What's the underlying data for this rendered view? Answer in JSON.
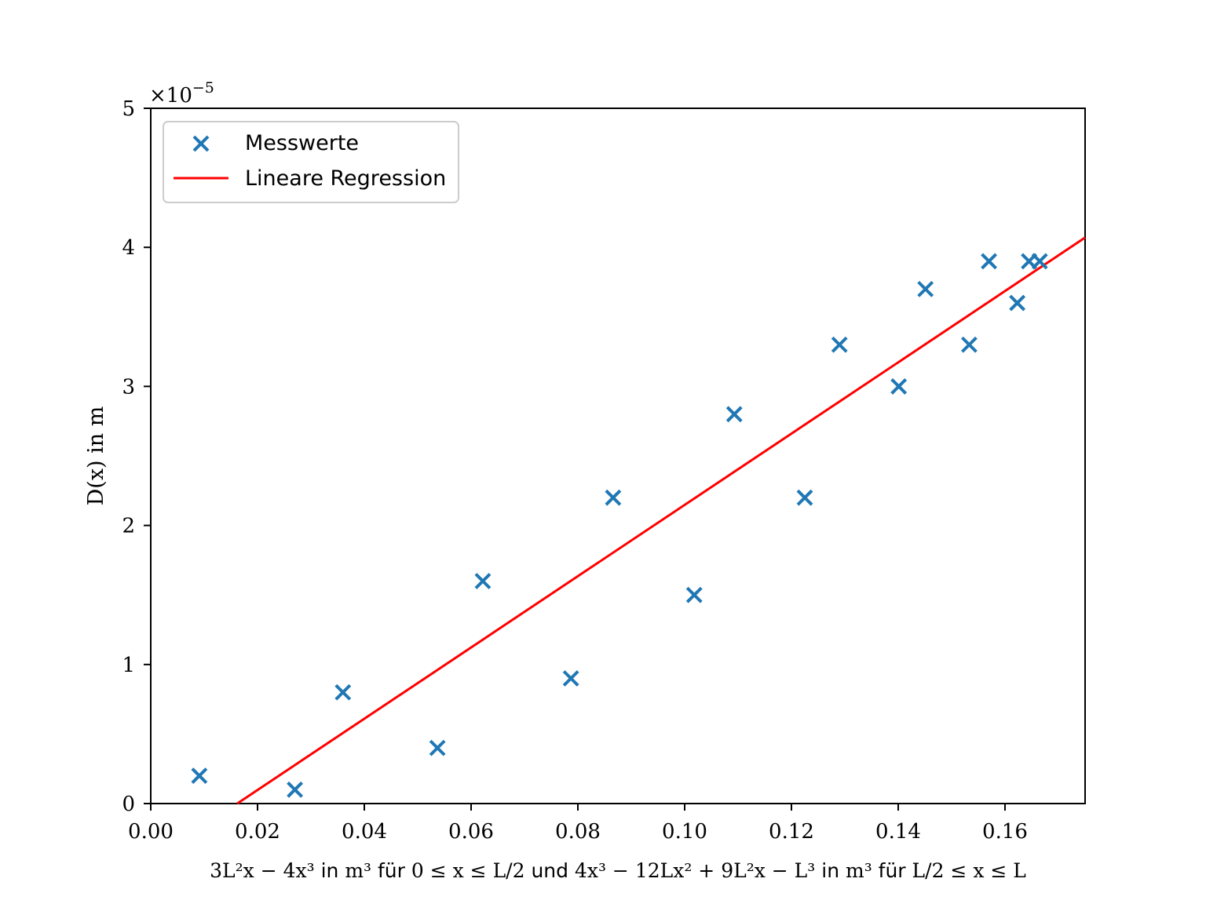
{
  "chart_data": {
    "type": "scatter",
    "ylabel": "D(x) in m",
    "xlabel_parts": [
      "3L²x − 4x³",
      " in ",
      "m³",
      " für ",
      "0 ≤ x ≤ ",
      "L/2",
      " und ",
      "4x³ − 12Lx² + 9L²x − L³",
      " in ",
      "m³",
      " für ",
      "L/2",
      " ≤ x ≤ L"
    ],
    "y_offset_label": "×10",
    "y_offset_exponent": "−5",
    "xlim": [
      0,
      0.175
    ],
    "ylim": [
      0,
      5
    ],
    "x_ticks": [
      0.0,
      0.02,
      0.04,
      0.06,
      0.08,
      0.1,
      0.12,
      0.14,
      0.16
    ],
    "x_tick_labels": [
      "0.00",
      "0.02",
      "0.04",
      "0.06",
      "0.08",
      "0.10",
      "0.12",
      "0.14",
      "0.16"
    ],
    "y_ticks": [
      0,
      1,
      2,
      3,
      4,
      5
    ],
    "y_tick_labels": [
      "0",
      "1",
      "2",
      "3",
      "4",
      "5"
    ],
    "grid": false,
    "legend_position": "top-left",
    "series": [
      {
        "name": "Messwerte",
        "type": "scatter",
        "marker": "x",
        "color": "#1f77b4",
        "x": [
          0.0091,
          0.027,
          0.036,
          0.0537,
          0.0622,
          0.0787,
          0.0866,
          0.1018,
          0.1093,
          0.1225,
          0.129,
          0.1401,
          0.1451,
          0.1533,
          0.157,
          0.1623,
          0.1645,
          0.1665
        ],
        "y": [
          0.2,
          0.1,
          0.8,
          0.4,
          1.6,
          0.9,
          2.2,
          1.5,
          2.8,
          2.2,
          3.3,
          3.0,
          3.7,
          3.3,
          3.9,
          3.6,
          3.9,
          3.9
        ]
      },
      {
        "name": "Lineare Regression",
        "type": "line",
        "color": "#ff0000",
        "x": [
          0.0162,
          0.175
        ],
        "y": [
          0.0,
          4.07
        ]
      }
    ]
  }
}
